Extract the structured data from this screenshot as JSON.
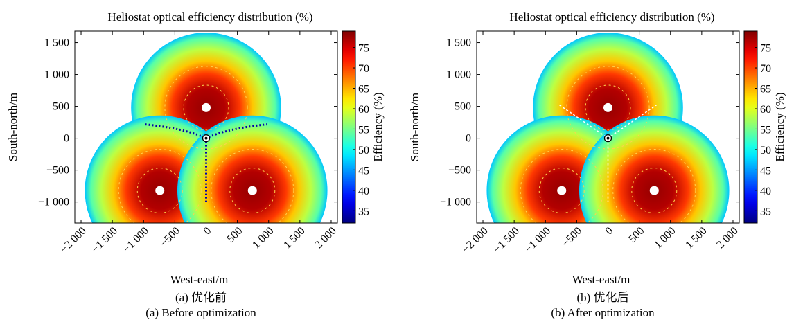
{
  "chart_data": [
    {
      "type": "scatter",
      "panel": "a",
      "title": "Heliostat optical efficiency distribution (%)",
      "xlabel": "West-east/m",
      "ylabel": "South-north/m",
      "caption_cn": "(a) 优化前",
      "caption_en": "(a) Before optimization",
      "xlim": [
        -2100,
        2100
      ],
      "ylim": [
        -1330,
        1680
      ],
      "xticks": [
        -2000,
        -1500,
        -1000,
        -500,
        0,
        500,
        1000,
        1500,
        2000
      ],
      "xtick_labels": [
        "−2 000",
        "−1 500",
        "−1 000",
        "−500",
        "0",
        "500",
        "1 000",
        "1 500",
        "2 000"
      ],
      "yticks": [
        -1000,
        -500,
        0,
        500,
        1000,
        1500
      ],
      "ytick_labels": [
        "−1 000",
        "−500",
        "0",
        "500",
        "1 000",
        "1 500"
      ],
      "colorbar": {
        "label": "Efficiency (%)",
        "range": [
          32,
          79
        ],
        "ticks": [
          35,
          40,
          45,
          50,
          55,
          60,
          65,
          70,
          75
        ],
        "tick_labels": [
          "35",
          "40",
          "45",
          "50",
          "55",
          "60",
          "65",
          "70",
          "75"
        ],
        "colormap": "jet"
      },
      "towers": [
        {
          "x": 0,
          "y": 480
        },
        {
          "x": -740,
          "y": -820
        },
        {
          "x": 740,
          "y": -820
        }
      ],
      "center_receiver": {
        "x": 0,
        "y": 0
      },
      "field_outer_radius": 1200,
      "peak_efficiency": 78,
      "inner_boundary_efficiency": 34
    },
    {
      "type": "scatter",
      "panel": "b",
      "title": "Heliostat optical efficiency distribution (%)",
      "xlabel": "West-east/m",
      "ylabel": "South-north/m",
      "caption_cn": "(b) 优化后",
      "caption_en": "(b) After optimization",
      "xlim": [
        -2100,
        2100
      ],
      "ylim": [
        -1330,
        1680
      ],
      "xticks": [
        -2000,
        -1500,
        -1000,
        -500,
        0,
        500,
        1000,
        1500,
        2000
      ],
      "xtick_labels": [
        "−2 000",
        "−1 500",
        "−1 000",
        "−500",
        "0",
        "500",
        "1 000",
        "1 500",
        "2 000"
      ],
      "yticks": [
        -1000,
        -500,
        0,
        500,
        1000,
        1500
      ],
      "ytick_labels": [
        "−1 000",
        "−500",
        "0",
        "500",
        "1 000",
        "1 500"
      ],
      "colorbar": {
        "label": "Efficiency (%)",
        "range": [
          32,
          79
        ],
        "ticks": [
          35,
          40,
          45,
          50,
          55,
          60,
          65,
          70,
          75
        ],
        "tick_labels": [
          "35",
          "40",
          "45",
          "50",
          "55",
          "60",
          "65",
          "70",
          "75"
        ],
        "colormap": "jet"
      },
      "towers": [
        {
          "x": 0,
          "y": 480
        },
        {
          "x": -740,
          "y": -820
        },
        {
          "x": 740,
          "y": -820
        }
      ],
      "center_receiver": {
        "x": 0,
        "y": 0
      },
      "field_outer_radius": 1200,
      "peak_efficiency": 78,
      "inner_boundary_efficiency": 60
    }
  ]
}
